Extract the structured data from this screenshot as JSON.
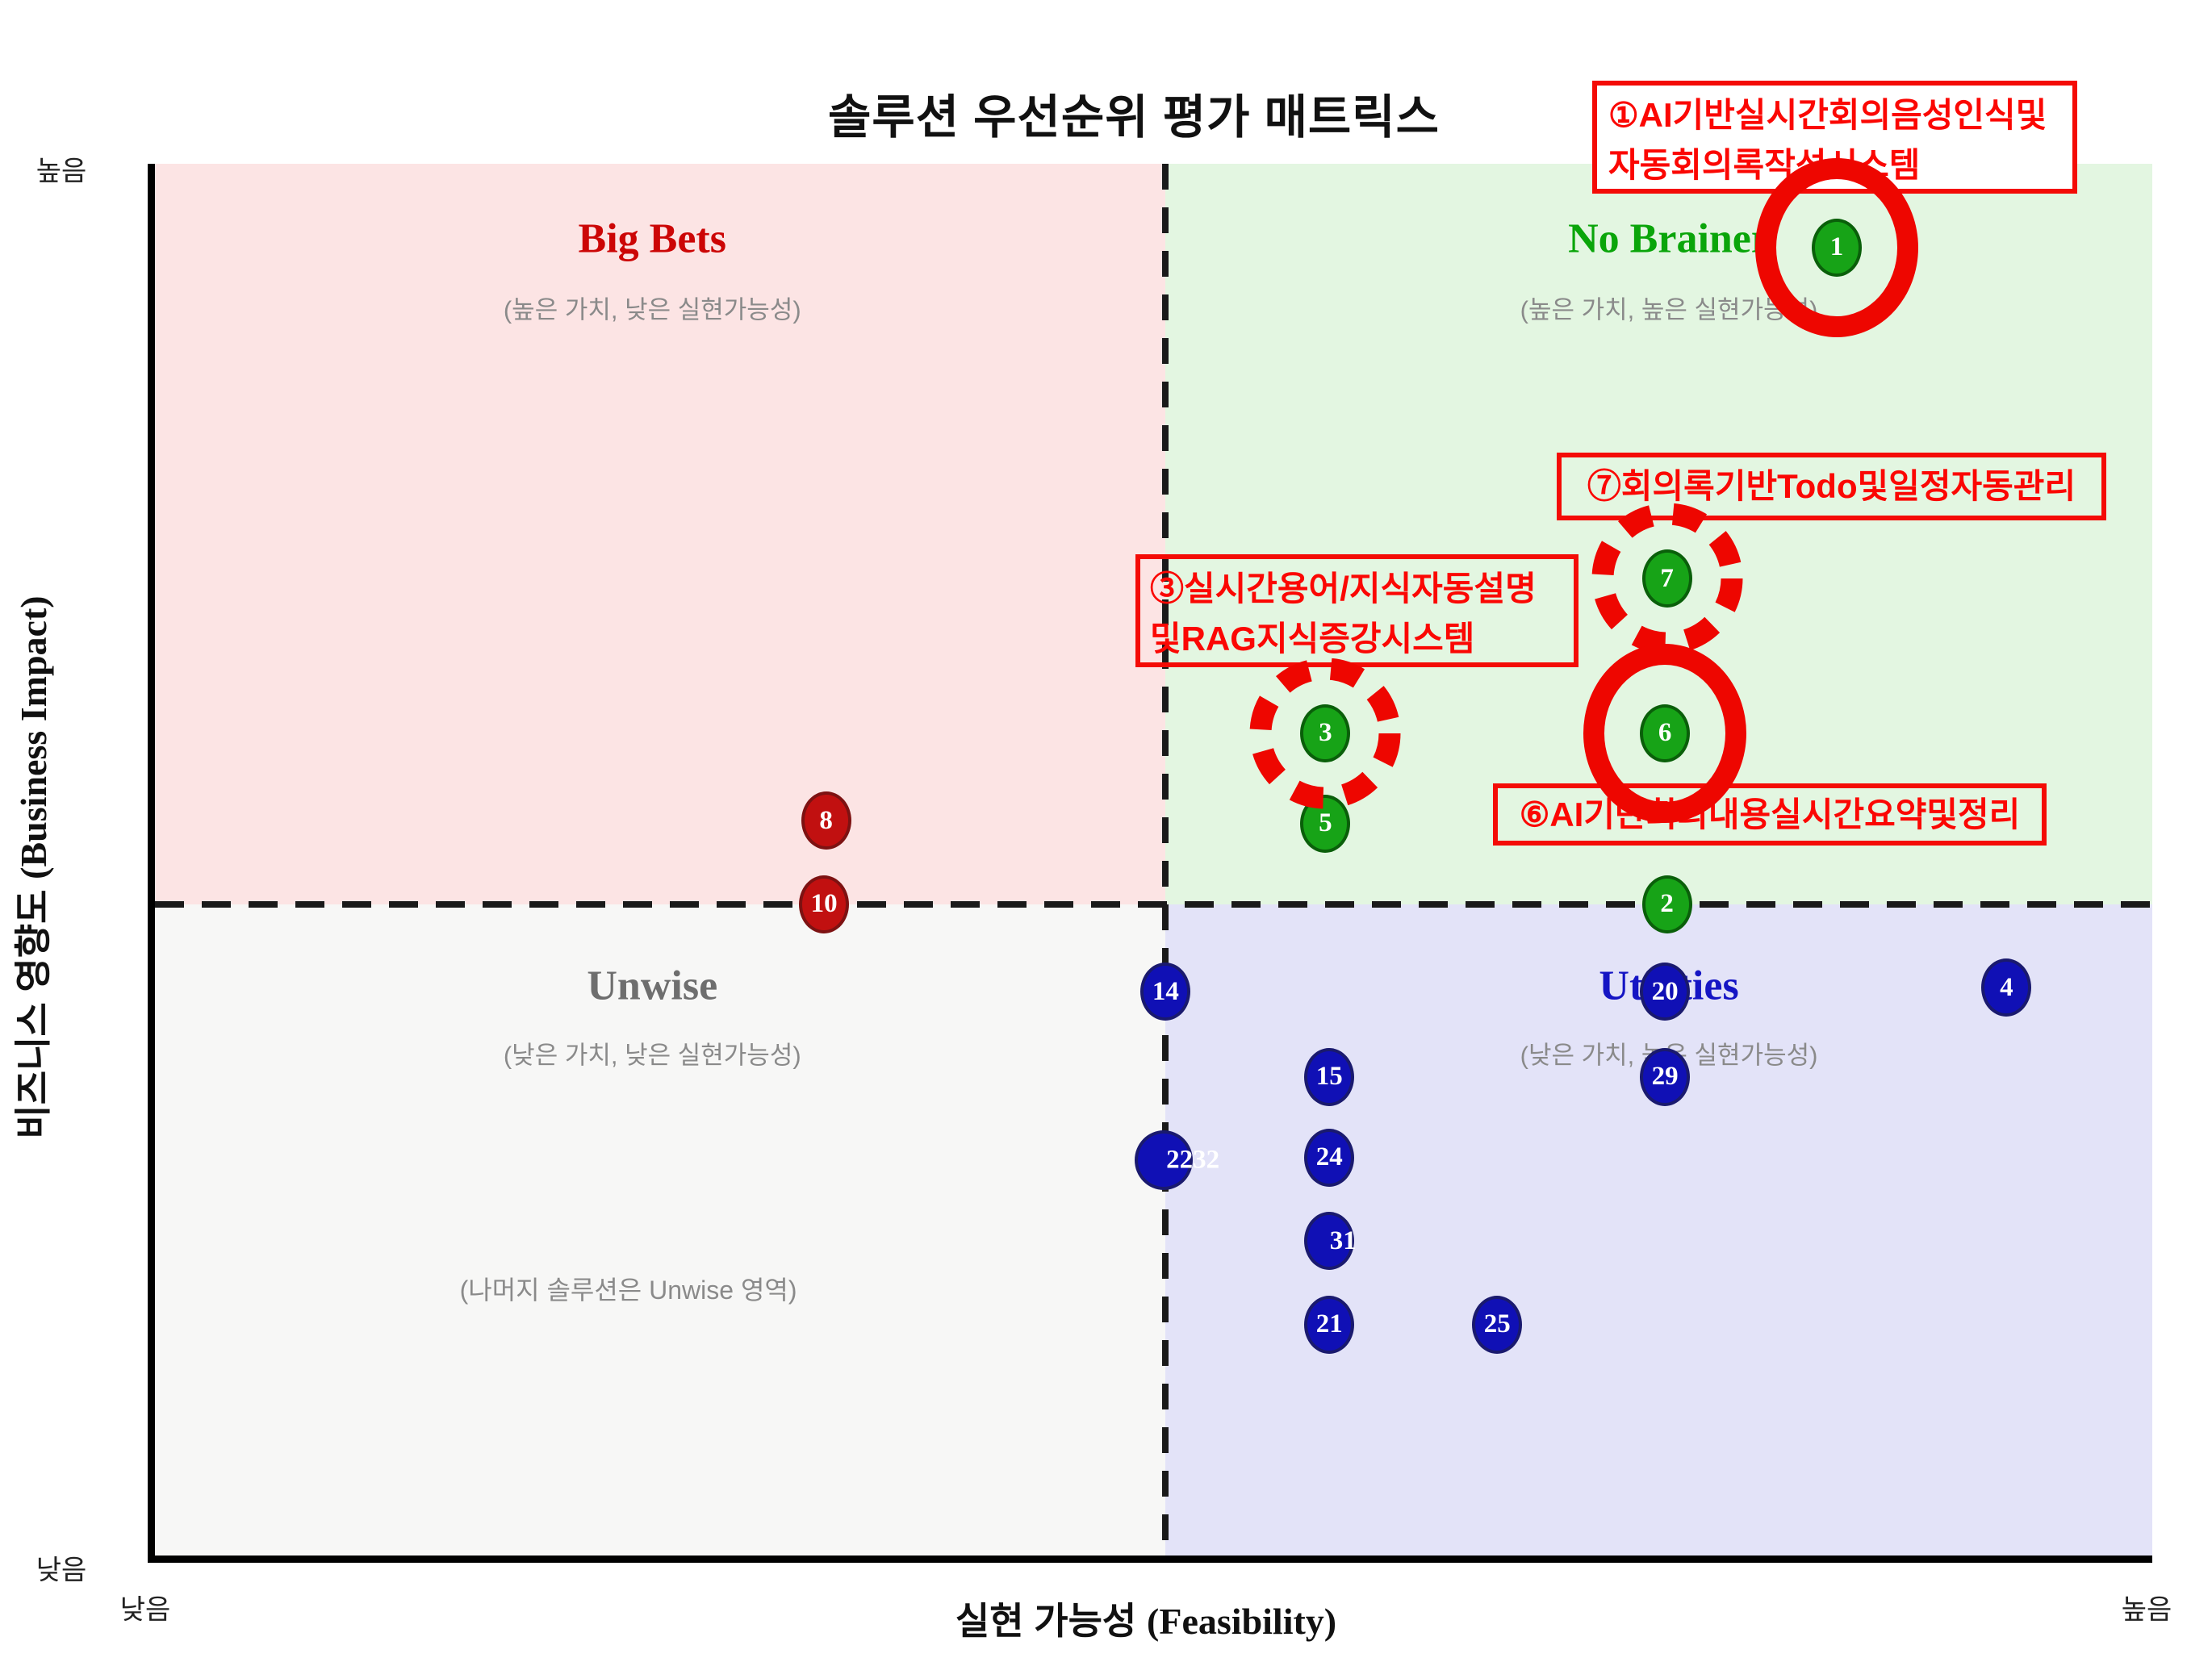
{
  "title": "솔루션 우선순위 평가 매트릭스",
  "axes": {
    "x_label_ko": "실현 가능성",
    "x_label_en": "(Feasibility)",
    "y_label_ko": "비즈니스 영향도",
    "y_label_en": "(Business Impact)",
    "x_low": "낮음",
    "x_high": "높음",
    "y_low": "낮음",
    "y_high": "높음"
  },
  "quadrants": {
    "big_bets": {
      "title": "Big Bets",
      "subtitle": "(높은 가치, 낮은 실현가능성)",
      "bg": "#fce4e4",
      "title_color": "#cc0606"
    },
    "no_brainer": {
      "title": "No Brainer",
      "subtitle": "(높은 가치, 높은 실현가능성)",
      "bg": "#e3f6e1",
      "title_color": "#0aa50a"
    },
    "unwise": {
      "title": "Unwise",
      "subtitle": "(낮은 가치, 낮은 실현가능성)",
      "bg": "#f7f7f6",
      "title_color": "#6e6e6e",
      "note": "(나머지 솔루션은 Unwise 영역)"
    },
    "utilities": {
      "title": "Utilities",
      "subtitle": "(낮은 가치, 높은 실현가능성)",
      "bg": "#e3e3f8",
      "title_color": "#1515c4"
    }
  },
  "annotations": {
    "box1": {
      "line1": "①AI기반실시간회의음성인식및",
      "line2": "자동회의록작성시스템"
    },
    "box7": {
      "line1": "⑦회의록기반Todo및일정자동관리"
    },
    "box3": {
      "line1": "③실시간용어/지식자동설명",
      "line2": "및RAG지식증강시스템"
    },
    "box6": {
      "line1": "⑥AI기반회의내용실시간요약및정리"
    }
  },
  "colors": {
    "green_point": "#17a317",
    "red_point": "#c11010",
    "blue_point": "#1010b5",
    "annotation_red": "#f40b06",
    "highlight_ring": "#ee0600",
    "quad_pink": "#fce4e4",
    "quad_green": "#e3f6e1",
    "quad_gray": "#f7f7f6",
    "quad_purple": "#e3e3f8"
  },
  "chart_data": {
    "type": "scatter",
    "title": "솔루션 우선순위 평가 매트릭스",
    "xlabel": "실현 가능성 (Feasibility)",
    "ylabel": "비즈니스 영향도 (Business Impact)",
    "x_range_labels": [
      "낮음",
      "높음"
    ],
    "y_range_labels": [
      "낮음",
      "높음"
    ],
    "grid": false,
    "legend": "none",
    "dividers": {
      "vertical_x_pct": 50.6,
      "horizontal_y_pct": 53.2
    },
    "points": [
      {
        "label": "1",
        "x": 84.2,
        "y": 94.0,
        "color": "green",
        "ring": "solid"
      },
      {
        "label": "7",
        "x": 75.7,
        "y": 70.2,
        "color": "green",
        "ring": "dashed"
      },
      {
        "label": "3",
        "x": 58.6,
        "y": 59.1,
        "color": "green",
        "ring": "dashed"
      },
      {
        "label": "6",
        "x": 75.6,
        "y": 59.1,
        "color": "green",
        "ring": "solid"
      },
      {
        "label": "5",
        "x": 58.6,
        "y": 52.6,
        "color": "green"
      },
      {
        "label": "8",
        "x": 33.6,
        "y": 52.8,
        "color": "red"
      },
      {
        "label": "10",
        "x": 33.5,
        "y": 46.8,
        "color": "red"
      },
      {
        "label": "2",
        "x": 75.7,
        "y": 46.8,
        "color": "green"
      },
      {
        "label": "14",
        "x": 50.6,
        "y": 40.5,
        "color": "blue"
      },
      {
        "label": "20",
        "x": 75.6,
        "y": 40.5,
        "color": "blue"
      },
      {
        "label": "4",
        "x": 92.7,
        "y": 40.8,
        "color": "blue"
      },
      {
        "label": "15",
        "x": 58.8,
        "y": 34.4,
        "color": "blue"
      },
      {
        "label": "29",
        "x": 75.6,
        "y": 34.4,
        "color": "blue"
      },
      {
        "label": "2232",
        "x": 50.5,
        "y": 28.4,
        "color": "blue",
        "size": "large",
        "label_style": "outside"
      },
      {
        "label": "24",
        "x": 58.8,
        "y": 28.6,
        "color": "blue"
      },
      {
        "label": "31",
        "x": 58.8,
        "y": 22.6,
        "color": "blue",
        "label_style": "shift-right"
      },
      {
        "label": "21",
        "x": 58.8,
        "y": 16.6,
        "color": "blue"
      },
      {
        "label": "25",
        "x": 67.2,
        "y": 16.6,
        "color": "blue"
      }
    ]
  }
}
